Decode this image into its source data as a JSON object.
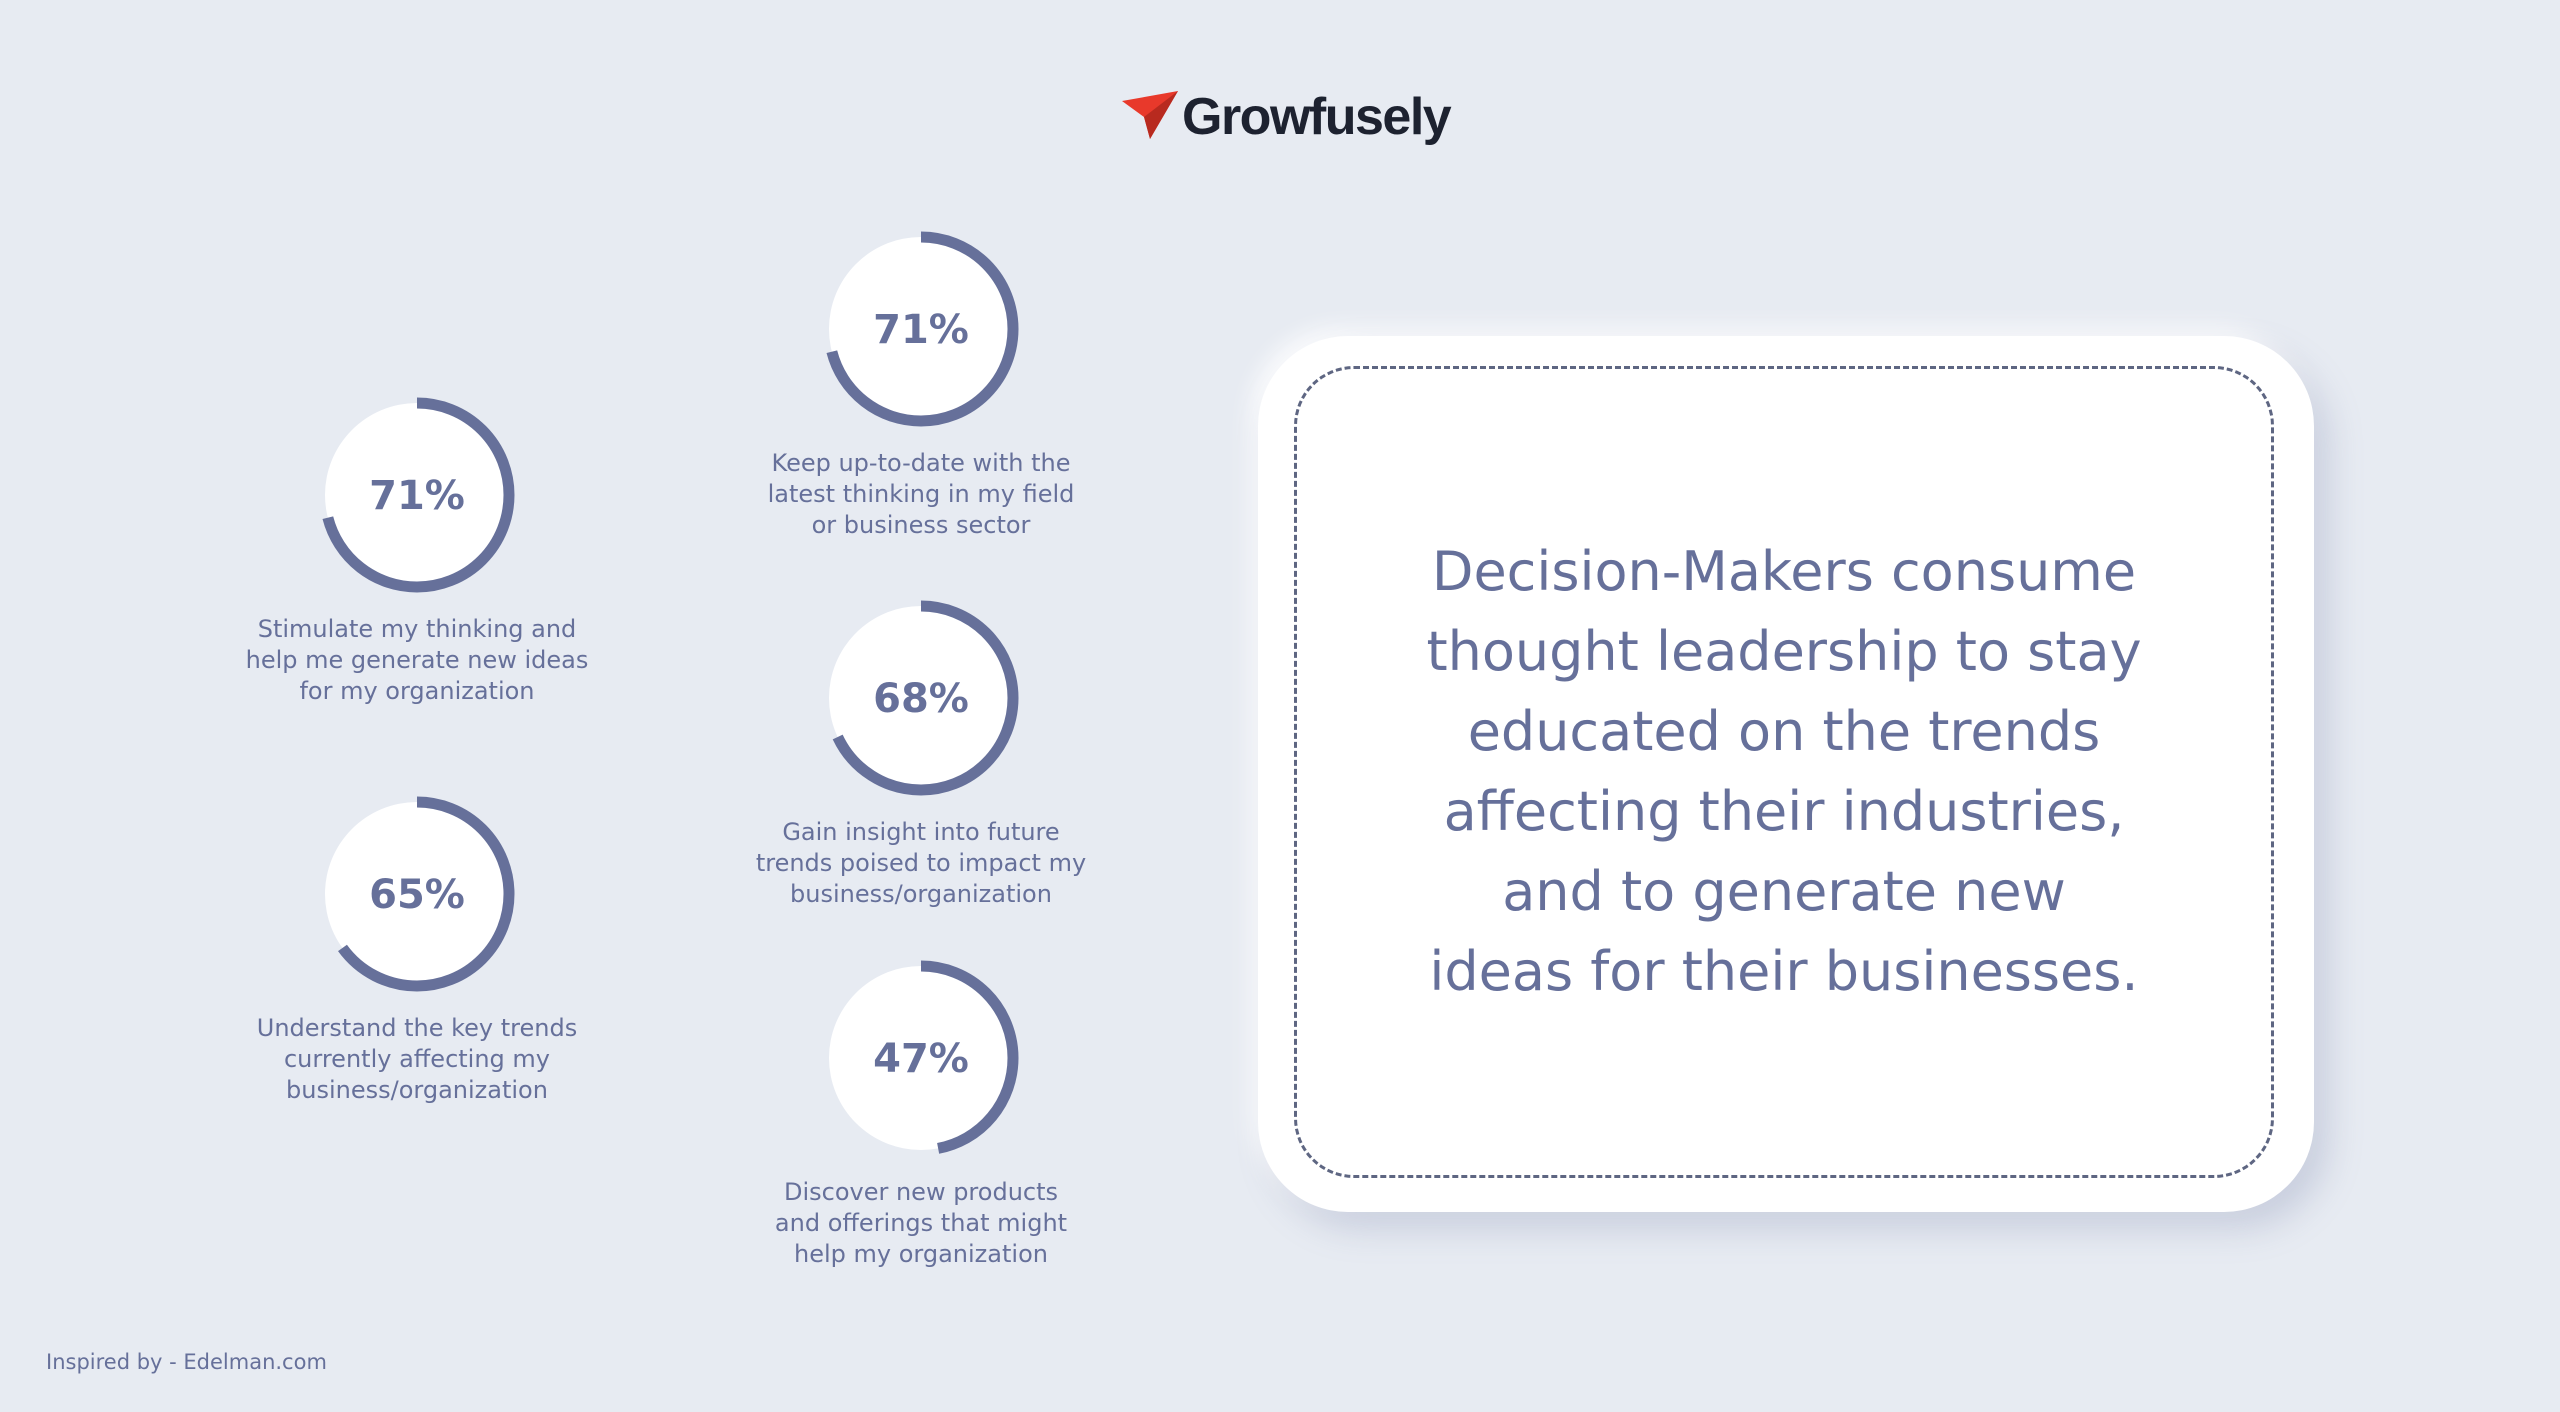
{
  "brand": {
    "name": "Growfusely",
    "accent_color": "#e8392b",
    "text_color": "#1d2230"
  },
  "colors": {
    "background": "#e7ebf2",
    "ring": "#66709a",
    "text": "#66709a"
  },
  "chart_data": {
    "type": "donut",
    "items": [
      {
        "value": 71,
        "label": "71%",
        "caption": "Keep up-to-date with the\nlatest thinking in my field\nor business sector"
      },
      {
        "value": 71,
        "label": "71%",
        "caption": "Stimulate my thinking and\nhelp me generate new ideas\nfor my organization"
      },
      {
        "value": 68,
        "label": "68%",
        "caption": "Gain insight into future\ntrends poised to impact my\nbusiness/organization"
      },
      {
        "value": 65,
        "label": "65%",
        "caption": "Understand the key trends\ncurrently affecting my\nbusiness/organization"
      },
      {
        "value": 47,
        "label": "47%",
        "caption": "Discover new products\nand offerings that might\nhelp my organization"
      }
    ]
  },
  "callout": {
    "text": "Decision-Makers consume\nthought leadership to stay\neducated on the trends\naffecting their industries,\nand to generate new\nideas for their businesses."
  },
  "footer": {
    "credit": "Inspired by - Edelman.com"
  }
}
